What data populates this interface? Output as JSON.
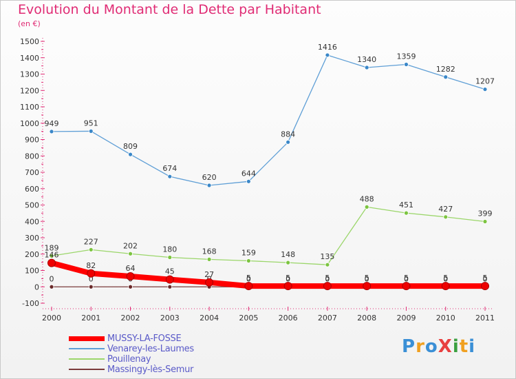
{
  "title": "Evolution du Montant de la Dette par Habitant",
  "subtitle": "(en €)",
  "logo": {
    "text": "ProXiti",
    "letters": [
      "P",
      "r",
      "o",
      "X",
      "i",
      "t",
      "i"
    ],
    "colors": [
      "#3a8fd6",
      "#f0a020",
      "#3a8fd6",
      "#e84040",
      "#3aa040",
      "#f0a020",
      "#3a8fd6"
    ]
  },
  "chart_data": {
    "type": "line",
    "title": "Evolution du Montant de la Dette par Habitant",
    "ylabel": "(en €)",
    "xlabel": "",
    "ylim": [
      -100,
      1500
    ],
    "yticks": [
      -100,
      0,
      100,
      200,
      300,
      400,
      500,
      600,
      700,
      800,
      900,
      1000,
      1100,
      1200,
      1300,
      1400,
      1500
    ],
    "x": [
      "2000",
      "2001",
      "2002",
      "2003",
      "2004",
      "2005",
      "2006",
      "2007",
      "2008",
      "2009",
      "2010",
      "2011"
    ],
    "series": [
      {
        "name": "Venarey-les-Laumes",
        "color": "#5f9fd6",
        "marker": "#3a87c8",
        "values": [
          949,
          951,
          809,
          674,
          620,
          644,
          884,
          1416,
          1340,
          1359,
          1282,
          1207
        ]
      },
      {
        "name": "Pouillenay",
        "color": "#9bd66a",
        "marker": "#7cc440",
        "values": [
          189,
          227,
          202,
          180,
          168,
          159,
          148,
          135,
          488,
          451,
          427,
          399
        ]
      },
      {
        "name": "Massingy-lès-Semur",
        "color": "#7a3a3a",
        "marker": "#6a2a2a",
        "values": [
          0,
          0,
          0,
          0,
          0,
          0,
          0,
          0,
          0,
          0,
          0,
          0
        ]
      },
      {
        "name": "MUSSY-LA-FOSSE",
        "color": "#ff0000",
        "marker": "#ee0000",
        "values": [
          146,
          82,
          64,
          45,
          27,
          5,
          5,
          5,
          5,
          5,
          5,
          5
        ]
      }
    ]
  },
  "legend": [
    {
      "label": "MUSSY-LA-FOSSE",
      "color": "#ff0000",
      "thickness": 7
    },
    {
      "label": "Venarey-les-Laumes",
      "color": "#5f9fd6",
      "thickness": 1.5
    },
    {
      "label": "Pouillenay",
      "color": "#9bd66a",
      "thickness": 1.5
    },
    {
      "label": "Massingy-lès-Semur",
      "color": "#7a3a3a",
      "thickness": 1.5
    }
  ]
}
